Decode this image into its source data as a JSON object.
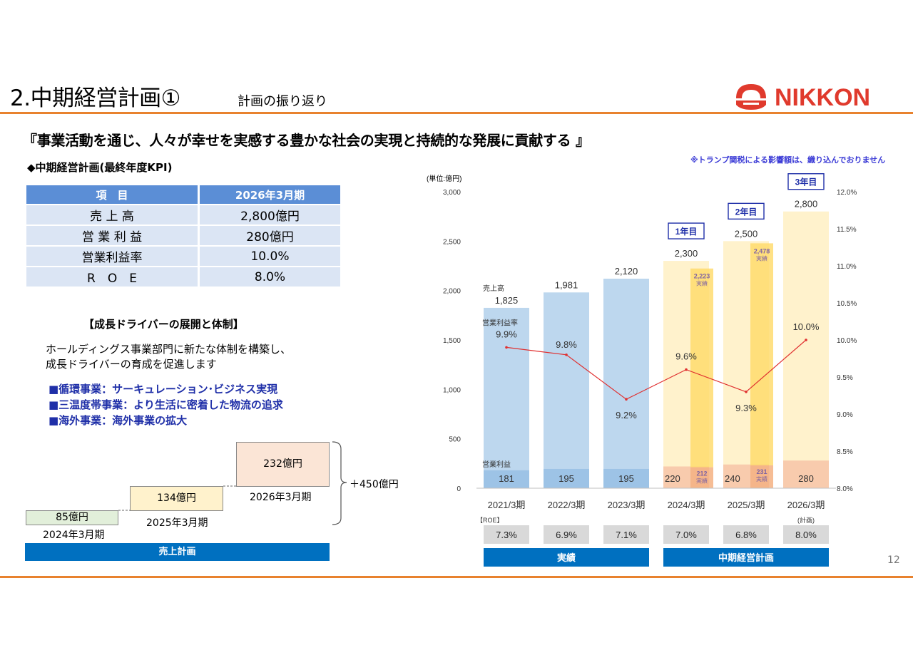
{
  "header": {
    "title": "2.中期経営計画①",
    "subtitle": "計画の振り返り",
    "logo_text": "NIKKON",
    "brand_color": "#e03a2d",
    "rule_color": "#e8822e"
  },
  "slogan": "『事業活動を通じ、人々が幸せを実感する豊かな社会の実現と持続的な発展に貢献する 』",
  "tariff_note": "※トランプ関税による影響額は、織り込んでおりません",
  "kpi": {
    "heading": "◆中期経営計画(最終年度KPI)",
    "col_item": "項　目",
    "col_target": "2026年3月期",
    "rows": [
      {
        "item": "売 上 高",
        "value": "2,800億円"
      },
      {
        "item": "営 業 利 益",
        "value": "280億円"
      },
      {
        "item": "営業利益率",
        "value": "10.0%"
      },
      {
        "item": "R　O　E",
        "value": "8.0%"
      }
    ]
  },
  "drivers": {
    "heading": "【成長ドライバーの展開と体制】",
    "line1": "ホールディングス事業部門に新たな体制を構築し、",
    "line2": "成長ドライバーの育成を促進します",
    "items": [
      "■循環事業：サーキュレーション･ビジネス実現",
      "■三温度帯事業：より生活に密着した物流の追求",
      "■海外事業：海外事業の拡大"
    ]
  },
  "sales_plan": {
    "steps": [
      {
        "value": "85億円",
        "period": "2024年3月期"
      },
      {
        "value": "134億円",
        "period": "2025年3月期"
      },
      {
        "value": "232億円",
        "period": "2026年3月期"
      }
    ],
    "total": "＋450億円",
    "footer": "売上計画"
  },
  "chart_data": {
    "type": "bar",
    "unit_label": "(単位:億円)",
    "categories": [
      "2021/3期",
      "2022/3期",
      "2023/3期",
      "2024/3期",
      "2025/3期",
      "2026/3期"
    ],
    "left_axis": {
      "ticks": [
        "0",
        "500",
        "1,000",
        "1,500",
        "2,000",
        "2,500",
        "3,000"
      ],
      "ylim": [
        0,
        3000
      ]
    },
    "right_axis": {
      "ticks": [
        "8.0%",
        "8.5%",
        "9.0%",
        "9.5%",
        "10.0%",
        "10.5%",
        "11.0%",
        "11.5%",
        "12.0%"
      ],
      "ylim": [
        8.0,
        12.0
      ]
    },
    "series": [
      {
        "name": "売上高",
        "values": [
          1825,
          1981,
          2120,
          2300,
          2500,
          2800
        ],
        "labels": [
          "1,825",
          "1,981",
          "2,120",
          "2,300",
          "2,500",
          "2,800"
        ]
      },
      {
        "name": "営業利益",
        "values": [
          181,
          195,
          195,
          220,
          240,
          280
        ],
        "labels": [
          "181",
          "195",
          "195",
          "220",
          "240",
          "280"
        ]
      },
      {
        "name": "営業利益率",
        "values": [
          9.9,
          9.8,
          9.2,
          9.6,
          9.3,
          10.0
        ],
        "labels": [
          "9.9%",
          "9.8%",
          "9.2%",
          "9.6%",
          "9.3%",
          "10.0%"
        ]
      }
    ],
    "actuals": [
      {
        "category": "2024/3期",
        "sales": 2223,
        "sales_label": "2,223",
        "profit": 212,
        "profit_label": "212",
        "tag": "実績"
      },
      {
        "category": "2025/3期",
        "sales": 2478,
        "sales_label": "2,478",
        "profit": 231,
        "profit_label": "231",
        "tag": "実績"
      }
    ],
    "year_badges": [
      {
        "category": "2024/3期",
        "label": "1年目"
      },
      {
        "category": "2025/3期",
        "label": "2年目"
      },
      {
        "category": "2026/3期",
        "label": "3年目"
      }
    ],
    "roe_label": "【ROE】",
    "plan_note": "(計画)",
    "roe": [
      "7.3%",
      "6.9%",
      "7.1%",
      "7.0%",
      "6.8%",
      "8.0%"
    ],
    "groups": [
      {
        "label": "実績",
        "span": [
          0,
          2
        ]
      },
      {
        "label": "中期経営計画",
        "span": [
          3,
          5
        ]
      }
    ],
    "colors": {
      "actual_sales": "#bdd7ee",
      "actual_profit": "#9dc3e6",
      "plan_sales": "#fff2cc",
      "plan_profit": "#f8cbad",
      "actual_overlay": "#ffd966",
      "margin_line": "#e03030",
      "badge": "#1f2fa8",
      "group_bar": "#0070c0",
      "roe_box": "#d9d9d9"
    }
  },
  "page_number": "12"
}
